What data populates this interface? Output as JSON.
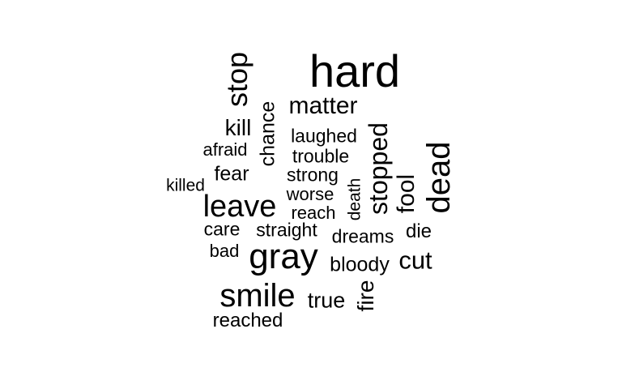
{
  "word_cloud": {
    "text_color": "#000000",
    "background_color": "#ffffff",
    "words": [
      {
        "id": "hard",
        "text": "hard",
        "orientation": "horizontal"
      },
      {
        "id": "stop",
        "text": "stop",
        "orientation": "vertical"
      },
      {
        "id": "matter",
        "text": "matter",
        "orientation": "horizontal"
      },
      {
        "id": "chance",
        "text": "chance",
        "orientation": "vertical"
      },
      {
        "id": "kill",
        "text": "kill",
        "orientation": "horizontal"
      },
      {
        "id": "laughed",
        "text": "laughed",
        "orientation": "horizontal"
      },
      {
        "id": "stopped",
        "text": "stopped",
        "orientation": "vertical"
      },
      {
        "id": "dead",
        "text": "dead",
        "orientation": "vertical"
      },
      {
        "id": "afraid",
        "text": "afraid",
        "orientation": "horizontal"
      },
      {
        "id": "trouble",
        "text": "trouble",
        "orientation": "horizontal"
      },
      {
        "id": "fear",
        "text": "fear",
        "orientation": "horizontal"
      },
      {
        "id": "strong",
        "text": "strong",
        "orientation": "horizontal"
      },
      {
        "id": "fool",
        "text": "fool",
        "orientation": "vertical"
      },
      {
        "id": "killed",
        "text": "killed",
        "orientation": "horizontal"
      },
      {
        "id": "death",
        "text": "death",
        "orientation": "vertical"
      },
      {
        "id": "worse",
        "text": "worse",
        "orientation": "horizontal"
      },
      {
        "id": "leave",
        "text": "leave",
        "orientation": "horizontal"
      },
      {
        "id": "reach",
        "text": "reach",
        "orientation": "horizontal"
      },
      {
        "id": "care",
        "text": "care",
        "orientation": "horizontal"
      },
      {
        "id": "straight",
        "text": "straight",
        "orientation": "horizontal"
      },
      {
        "id": "die",
        "text": "die",
        "orientation": "horizontal"
      },
      {
        "id": "dreams",
        "text": "dreams",
        "orientation": "horizontal"
      },
      {
        "id": "bad",
        "text": "bad",
        "orientation": "horizontal"
      },
      {
        "id": "gray",
        "text": "gray",
        "orientation": "horizontal"
      },
      {
        "id": "cut",
        "text": "cut",
        "orientation": "horizontal"
      },
      {
        "id": "bloody",
        "text": "bloody",
        "orientation": "horizontal"
      },
      {
        "id": "fire",
        "text": "fire",
        "orientation": "vertical"
      },
      {
        "id": "smile",
        "text": "smile",
        "orientation": "horizontal"
      },
      {
        "id": "true",
        "text": "true",
        "orientation": "horizontal"
      },
      {
        "id": "reached",
        "text": "reached",
        "orientation": "horizontal"
      }
    ]
  }
}
